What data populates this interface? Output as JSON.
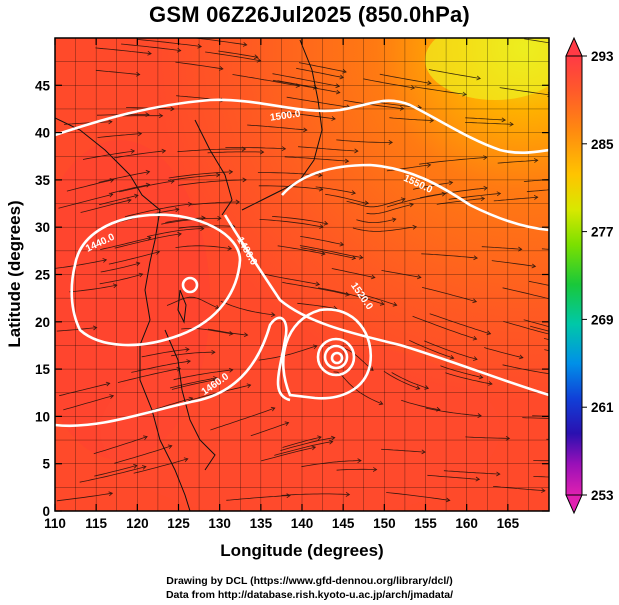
{
  "title": "GSM 06Z26Jul2025 (850.0hPa)",
  "x_axis": {
    "label": "Longitude (degrees)",
    "range": [
      110,
      170
    ],
    "ticks": [
      "110",
      "115",
      "120",
      "125",
      "130",
      "135",
      "140",
      "145",
      "150",
      "155",
      "160",
      "165"
    ]
  },
  "y_axis": {
    "label": "Latitude  (degrees)",
    "range": [
      0,
      50
    ],
    "ticks": [
      "0",
      "5",
      "10",
      "15",
      "20",
      "25",
      "30",
      "35",
      "40",
      "45"
    ]
  },
  "colorbar": {
    "labels": [
      "293",
      "285",
      "277",
      "269",
      "261",
      "253"
    ],
    "min": 253,
    "max": 293,
    "colors": [
      "#ff3a45",
      "#ff5a2a",
      "#ff8a10",
      "#ffc400",
      "#d8e800",
      "#7be000",
      "#19c83a",
      "#00c8a8",
      "#0090e8",
      "#1040d8",
      "#2a10b0",
      "#9a10b8",
      "#e020b0"
    ]
  },
  "contour_labels": [
    "1500.0",
    "1550.0",
    "1520.0",
    "1440.0",
    "1480.0",
    "1460.0"
  ],
  "credits": {
    "line1": "Drawing by DCL (https://www.gfd-dennou.org/library/dcl/)",
    "line2": "Data from http://database.rish.kyoto-u.ac.jp/arch/jmadata/"
  }
}
